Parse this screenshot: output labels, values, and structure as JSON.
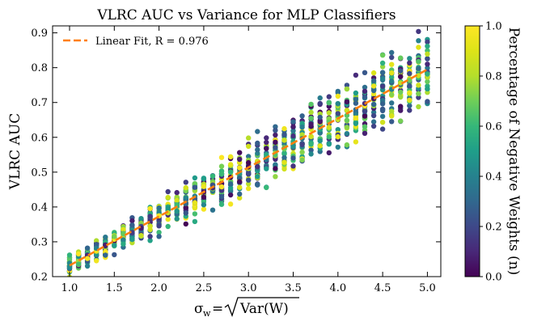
{
  "chart_data": {
    "type": "scatter",
    "title": "VLRC AUC vs Variance for MLP Classifiers",
    "xlabel_main": "σ",
    "xlabel_sub": "w",
    "xlabel_eq": "=",
    "xlabel_rad": "Var(W)",
    "ylabel": "VLRC AUC",
    "xlim": [
      0.81,
      5.15
    ],
    "ylim": [
      0.2,
      0.92
    ],
    "xticks": [
      "1.0",
      "1.5",
      "2.0",
      "2.5",
      "3.0",
      "3.5",
      "4.0",
      "4.5",
      "5.0"
    ],
    "yticks": [
      "0.2",
      "0.3",
      "0.4",
      "0.5",
      "0.6",
      "0.7",
      "0.8",
      "0.9"
    ],
    "legend_label": "Linear Fit, R = 0.976",
    "legend_position": "top-left",
    "colorbar": {
      "label": "Percentage of Negative Weights (n)",
      "ticks": [
        "0.0",
        "0.2",
        "0.4",
        "0.6",
        "0.8",
        "1.0"
      ],
      "range": [
        0,
        1
      ],
      "colormap": "viridis"
    },
    "fit": {
      "x": [
        1.0,
        5.0
      ],
      "y": [
        0.232,
        0.795
      ],
      "r": 0.976,
      "color": "#ff7f0e"
    },
    "sweep": {
      "x_start": 1.0,
      "x_end": 5.0,
      "x_step": 0.1,
      "points_per_x": 26,
      "y_at_x_start": 0.232,
      "y_at_x_end": 0.795,
      "spread_at_x_start": 0.022,
      "spread_at_x_end": 0.085,
      "seed": 17
    }
  }
}
